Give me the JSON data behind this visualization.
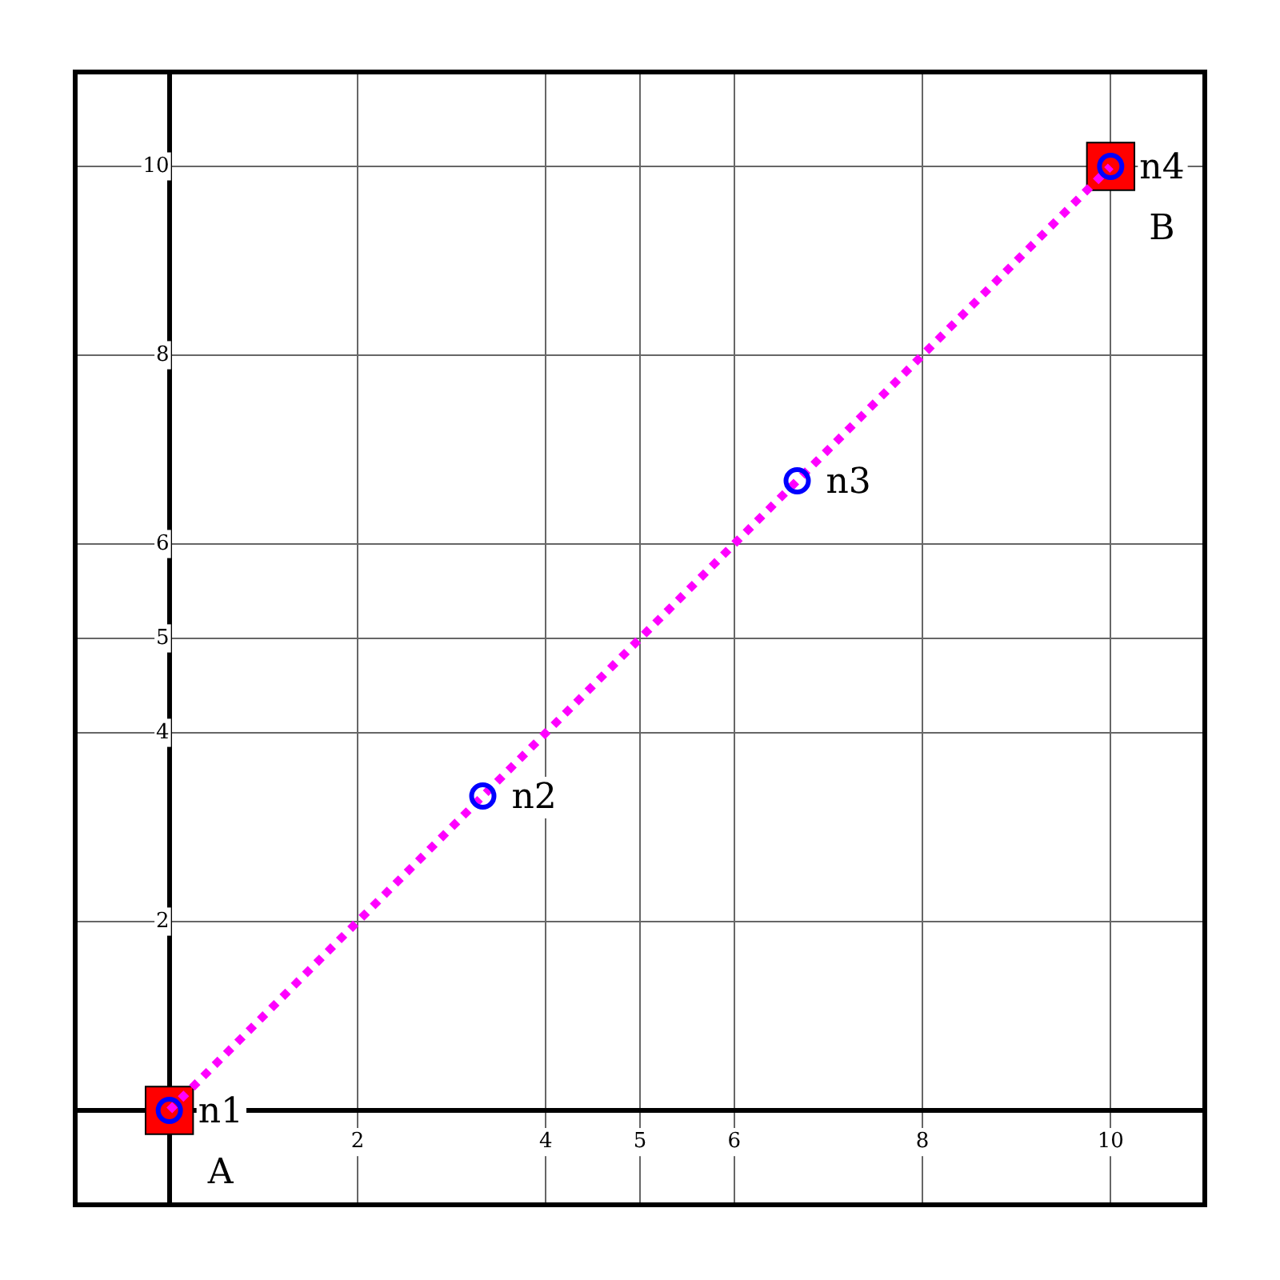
{
  "chart_data": {
    "type": "scatter",
    "series": [
      {
        "color": "#ff0000",
        "marker": "square",
        "x": [
          0,
          10
        ],
        "values": [
          0,
          10
        ]
      },
      {
        "type": "line",
        "color": "#ff00ff",
        "marker": "none",
        "line_style": "dotted",
        "x": [
          0,
          10
        ],
        "values": [
          0,
          10
        ]
      },
      {
        "color": "#0000ff",
        "marker": "circle",
        "x": [
          0,
          3.33,
          6.67,
          10
        ],
        "values": [
          0,
          3.33,
          6.67,
          10
        ]
      }
    ],
    "xlim": [
      -1,
      11
    ],
    "ylim": [
      -1,
      11
    ],
    "xticks": [
      2,
      4,
      5,
      6,
      8,
      10
    ],
    "yticks": [
      2,
      4,
      5,
      6,
      8,
      10
    ],
    "grid": true,
    "legend": false,
    "annotations": [
      {
        "text": "n1",
        "x": 0,
        "y": 0
      },
      {
        "text": "n2",
        "x": 3.33,
        "y": 3.33
      },
      {
        "text": "n3",
        "x": 6.67,
        "y": 6.67
      },
      {
        "text": "n4",
        "x": 10,
        "y": 10
      },
      "A",
      "B"
    ]
  }
}
